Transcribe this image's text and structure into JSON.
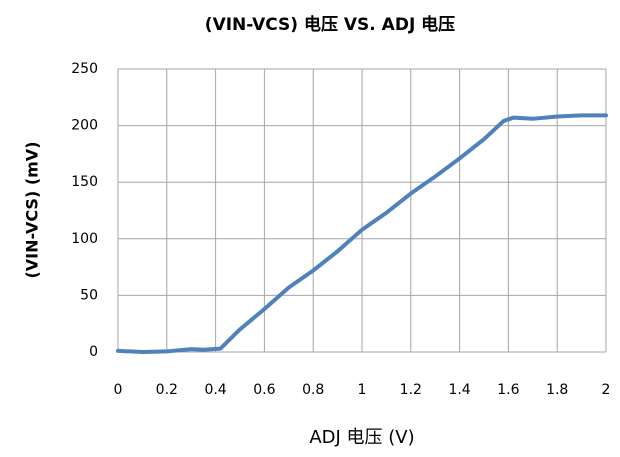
{
  "chart_data": {
    "type": "line",
    "title": "(VIN-VCS)  电压 VS. ADJ 电压",
    "x_label": "ADJ  电压  (V)",
    "y_label": "(VIN-VCS) (mV)",
    "x": [
      0,
      0.1,
      0.2,
      0.3,
      0.35,
      0.42,
      0.5,
      0.6,
      0.7,
      0.8,
      0.9,
      1.0,
      1.1,
      1.2,
      1.3,
      1.4,
      1.5,
      1.58,
      1.62,
      1.7,
      1.8,
      1.9,
      2.0
    ],
    "series": [
      {
        "name": "(VIN-VCS)",
        "color": "#4f81bd",
        "values": [
          1,
          0,
          0.5,
          2.5,
          2,
          3,
          20,
          38,
          57,
          72,
          89,
          108,
          123,
          140,
          155,
          171,
          188,
          204,
          207,
          206,
          208,
          209,
          209
        ]
      }
    ],
    "xlim": [
      0,
      2
    ],
    "xticks": [
      0,
      0.2,
      0.4,
      0.6,
      0.8,
      1,
      1.2,
      1.4,
      1.6,
      1.8,
      2
    ],
    "ylim": [
      0,
      250
    ],
    "yticks": [
      0,
      50,
      100,
      150,
      200,
      250
    ],
    "grid": true
  }
}
